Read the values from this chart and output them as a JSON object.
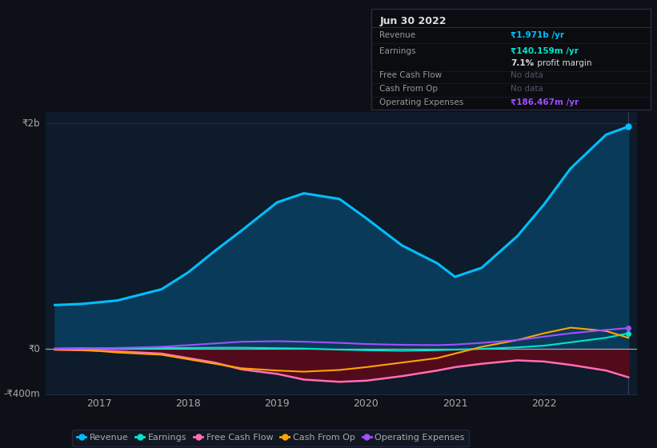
{
  "bg_color": "#0d1117",
  "plot_bg_color": "#0d1b2a",
  "text_color": "#aaaaaa",
  "white_color": "#ffffff",
  "ylim": [
    -400,
    2100
  ],
  "x_years": [
    2016.5,
    2016.8,
    2017.2,
    2017.7,
    2018.0,
    2018.3,
    2018.6,
    2019.0,
    2019.3,
    2019.7,
    2020.0,
    2020.4,
    2020.8,
    2021.0,
    2021.3,
    2021.7,
    2022.0,
    2022.3,
    2022.7,
    2022.95
  ],
  "revenue": [
    390,
    400,
    430,
    530,
    680,
    870,
    1050,
    1300,
    1380,
    1330,
    1160,
    920,
    760,
    640,
    720,
    1000,
    1280,
    1600,
    1900,
    1971
  ],
  "earnings": [
    5,
    8,
    5,
    10,
    10,
    12,
    12,
    8,
    5,
    -5,
    -10,
    -15,
    -10,
    -5,
    2,
    15,
    30,
    60,
    100,
    140
  ],
  "free_cash_flow": [
    -5,
    -10,
    -20,
    -40,
    -80,
    -120,
    -180,
    -220,
    -270,
    -290,
    -280,
    -240,
    -190,
    -160,
    -130,
    -100,
    -110,
    -140,
    -190,
    -250
  ],
  "cash_from_op": [
    -3,
    -5,
    -30,
    -50,
    -90,
    -130,
    -170,
    -190,
    -200,
    -185,
    -160,
    -120,
    -80,
    -40,
    20,
    80,
    140,
    190,
    160,
    100
  ],
  "operating_expenses": [
    3,
    5,
    10,
    20,
    35,
    50,
    65,
    70,
    65,
    55,
    45,
    38,
    35,
    40,
    55,
    80,
    110,
    140,
    170,
    186
  ],
  "revenue_color": "#00bfff",
  "earnings_color": "#00e5cc",
  "free_cash_flow_color": "#ff6eb4",
  "cash_from_op_color": "#ffa500",
  "operating_expenses_color": "#a050ff",
  "revenue_fill_color": "#0a3a5a",
  "free_cash_flow_fill_color": "#5a0a1a",
  "xticks": [
    2017,
    2018,
    2019,
    2020,
    2021,
    2022
  ],
  "xtick_labels": [
    "2017",
    "2018",
    "2019",
    "2020",
    "2021",
    "2022"
  ],
  "vline_x": 2022.95,
  "info_box": {
    "date": "Jun 30 2022",
    "revenue_val": "₹1.971b /yr",
    "earnings_val": "₹140.159m /yr",
    "profit_margin": "7.1% profit margin",
    "free_cash_flow_val": "No data",
    "cash_from_op_val": "No data",
    "operating_expenses_val": "₹186.467m /yr"
  }
}
